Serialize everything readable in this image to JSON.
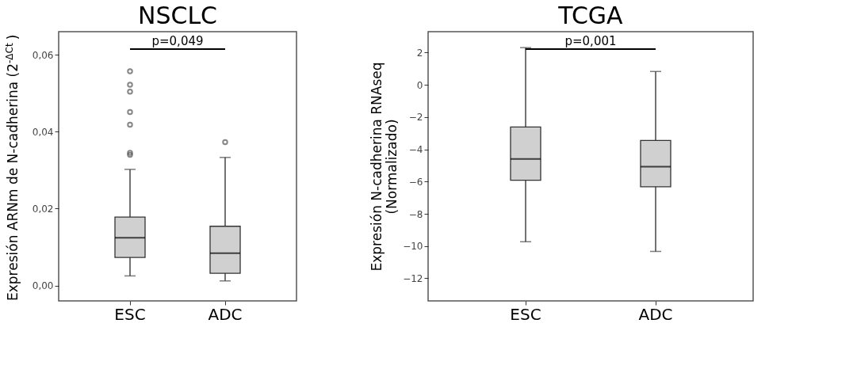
{
  "chart_data": [
    {
      "type": "box",
      "title": "NSCLC",
      "ylabel": "Expresión ARNm de N-cadherina (2$^{-ΔCt}$)",
      "categories": [
        "ESC",
        "ADC"
      ],
      "boxes": [
        {
          "low": 0.0025,
          "q1": 0.0073,
          "median": 0.0124,
          "q3": 0.0178,
          "high": 0.0302,
          "outliers": [
            0.034,
            0.0345,
            0.0418,
            0.0451,
            0.0504,
            0.0522,
            0.0557
          ]
        },
        {
          "low": 0.0012,
          "q1": 0.0032,
          "median": 0.0084,
          "q3": 0.0154,
          "high": 0.0333,
          "outliers": [
            0.0373
          ]
        }
      ],
      "color": "#d0d0d0",
      "ylim": [
        -0.004,
        0.066
      ],
      "yticks": [
        {
          "value": 0,
          "label": "0,00"
        },
        {
          "value": 0.02,
          "label": "0,02"
        },
        {
          "value": 0.04,
          "label": "0,04"
        },
        {
          "value": 0.06,
          "label": "0,06"
        }
      ],
      "annotations": [
        "p=0,049"
      ],
      "grid": false
    },
    {
      "type": "box",
      "title": "TCGA",
      "ylabel": "Expresión N-cadherina RNAseq\n(Normalizado)",
      "categories": [
        "ESC",
        "ADC"
      ],
      "boxes": [
        {
          "low": -9.73,
          "q1": -5.92,
          "median": -4.59,
          "q3": -2.61,
          "high": 2.31
        },
        {
          "low": -10.33,
          "q1": -6.32,
          "median": -5.08,
          "q3": -3.45,
          "high": 0.83
        }
      ],
      "color": "#d0d0d0",
      "ylim": [
        -13.4,
        3.3
      ],
      "yticks": [
        -12,
        -10,
        -8,
        -6,
        -4,
        -2,
        0,
        2
      ],
      "annotations": [
        "p=0,001"
      ],
      "grid": false
    }
  ]
}
